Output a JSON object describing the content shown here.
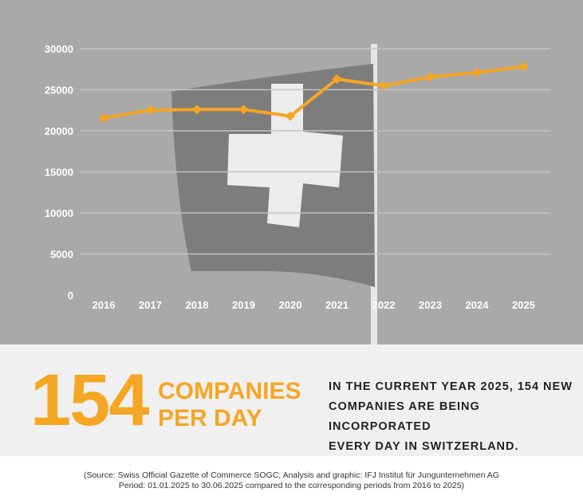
{
  "chart_data": {
    "type": "line",
    "categories": [
      "2016",
      "2017",
      "2018",
      "2019",
      "2020",
      "2021",
      "2022",
      "2023",
      "2024",
      "2025"
    ],
    "values": [
      21550,
      22520,
      22590,
      22600,
      21780,
      26300,
      25470,
      26540,
      27090,
      27830
    ],
    "yticks": [
      0,
      5000,
      10000,
      15000,
      20000,
      25000,
      30000
    ],
    "ylim": [
      0,
      30000
    ],
    "grid": true,
    "color": "#f5a623"
  },
  "highlight": {
    "number": "154",
    "unit_line1": "COMPANIES",
    "unit_line2": "PER DAY"
  },
  "description": {
    "line1": "IN THE CURRENT YEAR 2025, 154 NEW",
    "line2": "COMPANIES ARE BEING INCORPORATED",
    "line3": "EVERY DAY IN SWITZERLAND."
  },
  "source": {
    "line1": "(Source: Swiss Official Gazette of Commerce SOGC; Analysis and graphic: IFJ Institut für Jungunternehmen AG",
    "line2": "Period: 01.01.2025 to 30.06.2025 compared to the corresponding periods from 2016 to 2025)"
  }
}
